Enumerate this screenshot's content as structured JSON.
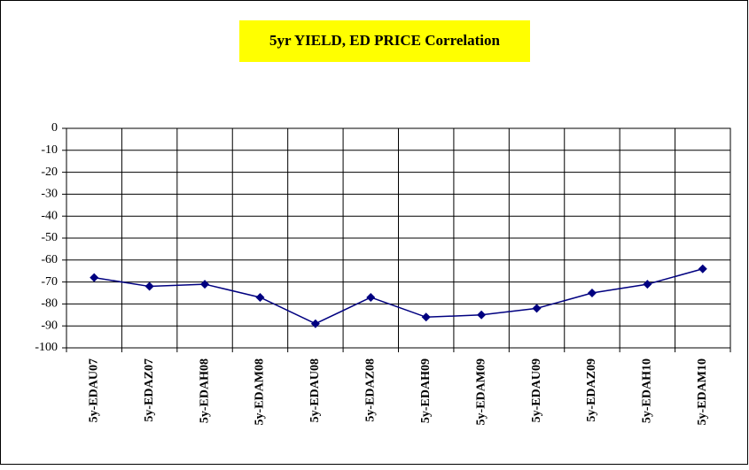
{
  "chart_data": {
    "type": "line",
    "title": "5yr YIELD, ED PRICE Correlation",
    "categories": [
      "5y-EDAU07",
      "5y-EDAZ07",
      "5y-EDAH08",
      "5y-EDAM08",
      "5y-EDAU08",
      "5y-EDAZ08",
      "5y-EDAH09",
      "5y-EDAM09",
      "5y-EDAU09",
      "5y-EDAZ09",
      "5y-EDAH10",
      "5y-EDAM10"
    ],
    "values": [
      -68,
      -72,
      -71,
      -77,
      -89,
      -77,
      -86,
      -85,
      -82,
      -75,
      -71,
      -64
    ],
    "color": "#000080",
    "ylim": [
      -100,
      0
    ],
    "yticks": [
      0,
      -10,
      -20,
      -30,
      -40,
      -50,
      -60,
      -70,
      -80,
      -90,
      -100
    ],
    "grid": true
  }
}
